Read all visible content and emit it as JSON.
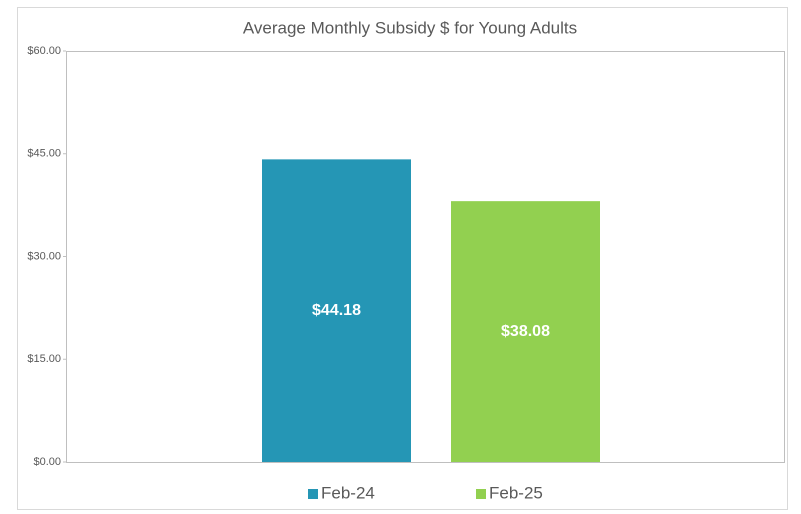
{
  "chart_data": {
    "type": "bar",
    "title": "Average Monthly Subsidy $ for Young Adults",
    "series": [
      {
        "name": "Feb-24",
        "color": "#2596b5",
        "values": [
          44.18
        ],
        "value_labels": [
          "$44.18"
        ]
      },
      {
        "name": "Feb-25",
        "color": "#92d050",
        "values": [
          38.08
        ],
        "value_labels": [
          "$38.08"
        ]
      }
    ],
    "ylim": [
      0,
      60
    ],
    "yticks": [
      {
        "value": 0,
        "label": "$0.00"
      },
      {
        "value": 15,
        "label": "$15.00"
      },
      {
        "value": 30,
        "label": "$30.00"
      },
      {
        "value": 45,
        "label": "$45.00"
      },
      {
        "value": 60,
        "label": "$60.00"
      }
    ],
    "legend": "bottom"
  }
}
